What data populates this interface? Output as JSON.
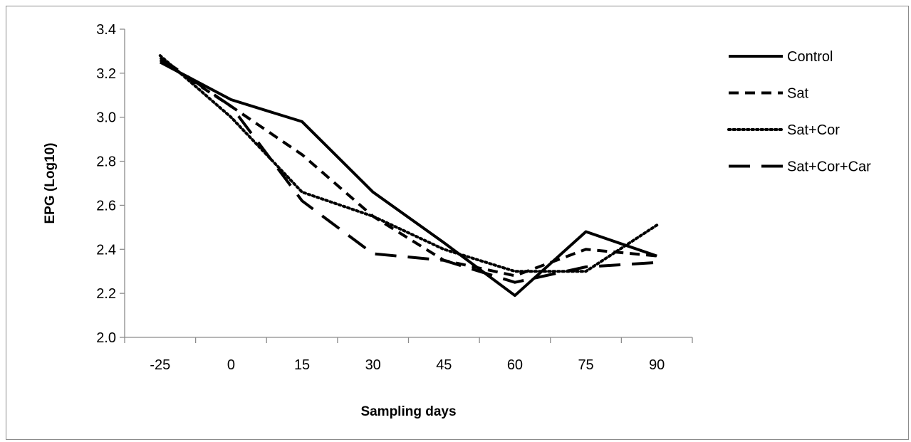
{
  "chart_data": {
    "type": "line",
    "title": "",
    "xlabel": "Sampling days",
    "ylabel": "EPG (Log10)",
    "categories": [
      "-25",
      "0",
      "15",
      "30",
      "45",
      "60",
      "75",
      "90"
    ],
    "ylim": [
      2.0,
      3.4
    ],
    "yticks": [
      "2.0",
      "2.2",
      "2.4",
      "2.6",
      "2.8",
      "3.0",
      "3.2",
      "3.4"
    ],
    "grid": false,
    "legend_position": "right",
    "series": [
      {
        "name": "Control",
        "dash": "solid",
        "values": [
          3.25,
          3.08,
          2.98,
          2.66,
          2.43,
          2.19,
          2.48,
          2.37
        ]
      },
      {
        "name": "Sat",
        "dash": "dashed",
        "values": [
          3.26,
          3.05,
          2.83,
          2.55,
          2.35,
          2.28,
          2.4,
          2.37
        ]
      },
      {
        "name": "Sat+Cor",
        "dash": "dotted",
        "values": [
          3.28,
          3.0,
          2.66,
          2.55,
          2.4,
          2.3,
          2.3,
          2.51
        ]
      },
      {
        "name": "Sat+Cor+Car",
        "dash": "long-dash",
        "values": [
          3.27,
          3.05,
          2.62,
          2.38,
          2.35,
          2.25,
          2.32,
          2.34
        ]
      }
    ]
  }
}
